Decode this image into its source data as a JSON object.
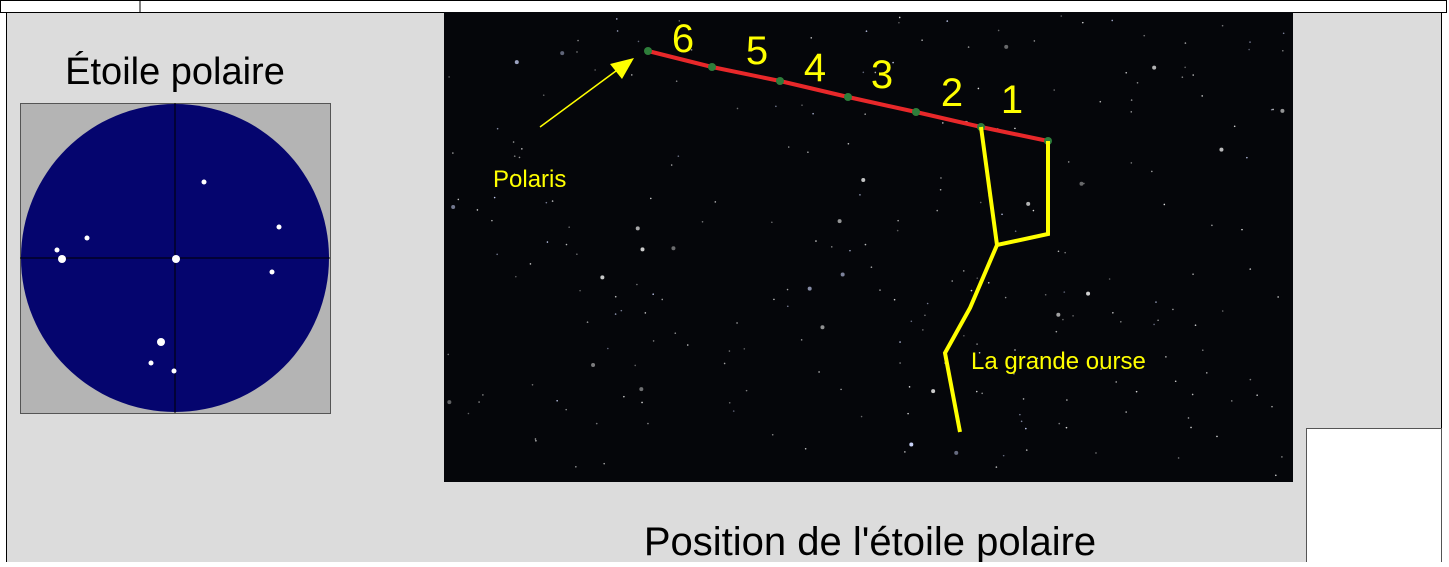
{
  "left_panel": {
    "title": "Étoile polaire"
  },
  "sky": {
    "polaris_label": "Polaris",
    "step_labels": [
      "6",
      "5",
      "4",
      "3",
      "2",
      "1"
    ],
    "constellation_label": "La grande ourse"
  },
  "caption": "Position de l'étoile polaire"
}
